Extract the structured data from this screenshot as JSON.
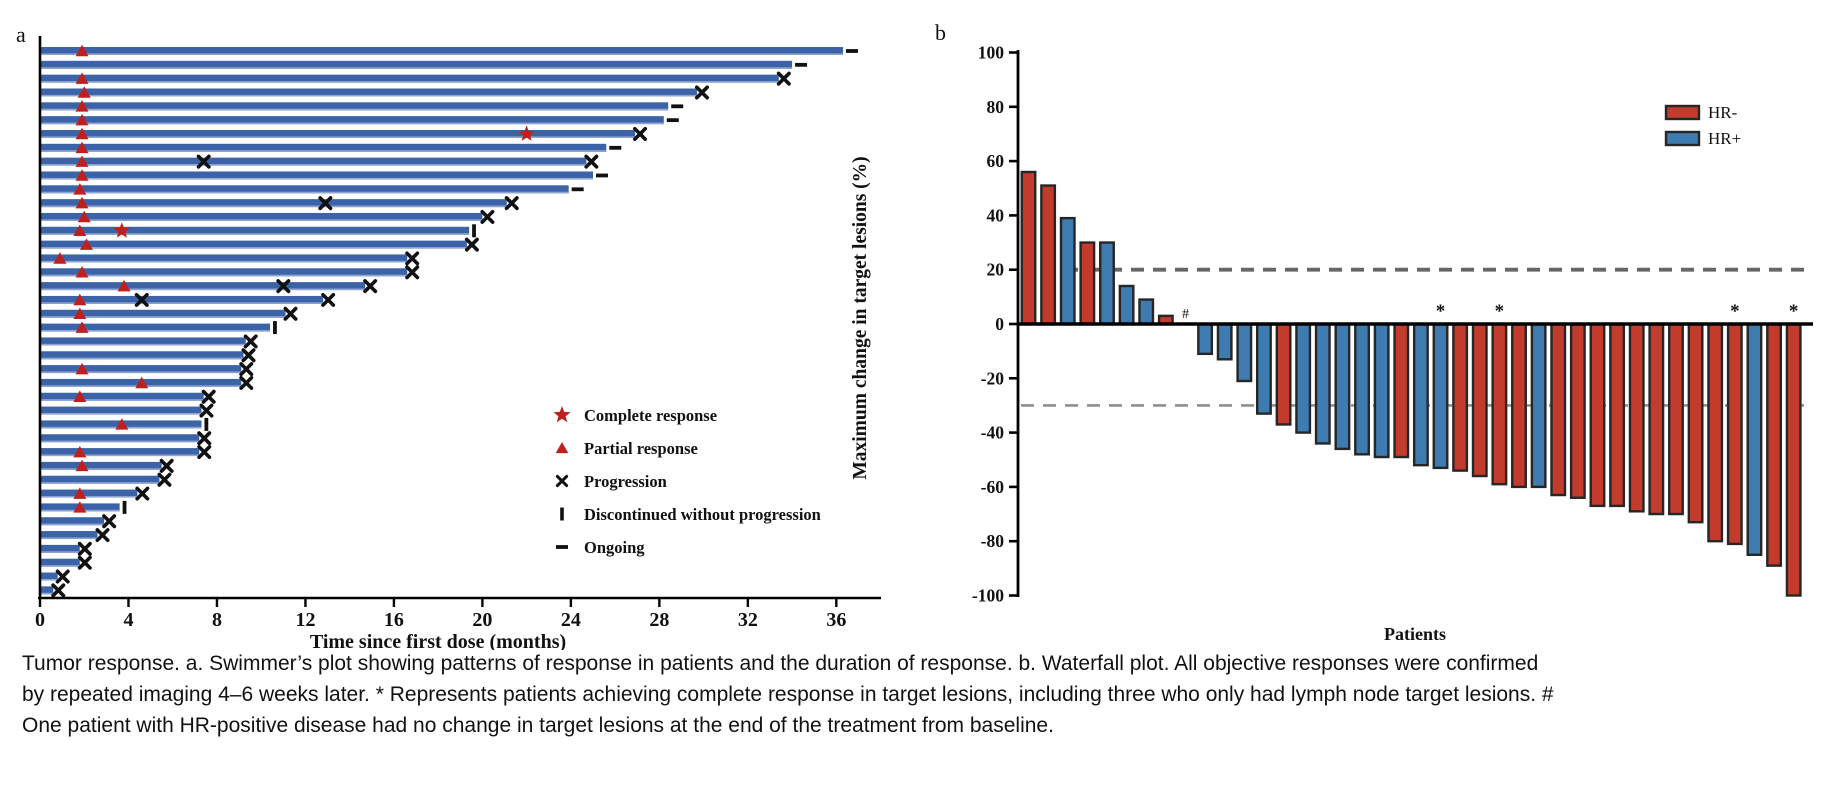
{
  "colors": {
    "swimmer_bar": "#3c63a8",
    "swimmer_bar_edge": "#8ea6cf",
    "hr_neg_red": "#c23b2c",
    "hr_pos_blue": "#3e7bb0",
    "bar_outline": "#262626",
    "response_marker_red": "#c01f1f",
    "progression_black": "#111111",
    "dash_line_dark": "#666666",
    "dash_line_light": "#8f8f8f"
  },
  "caption": {
    "text": "Tumor response. a. Swimmer’s plot showing patterns of response in patients and the duration of response. b. Waterfall plot. All objective responses were confirmed by repeated imaging 4–6 weeks later. * Represents patients achieving complete response in target lesions, including three who only had lymph node target lesions. # One patient with HR-positive disease had no change in target lesions at the end of the treatment from baseline."
  },
  "chart_data": [
    {
      "type": "bar",
      "id": "swimmer",
      "panel_label": "a",
      "orientation": "horizontal",
      "xlabel": "Time since first dose (months)",
      "x_ticks": [
        0,
        4,
        8,
        12,
        16,
        20,
        24,
        28,
        32,
        36
      ],
      "xlim": [
        0,
        38
      ],
      "grid": false,
      "legend_position": "right-middle",
      "legend": [
        {
          "symbol": "star",
          "label": "Complete response"
        },
        {
          "symbol": "triangle",
          "label": "Partial response"
        },
        {
          "symbol": "x",
          "label": "Progression"
        },
        {
          "symbol": "bar",
          "label": "Discontinued without progression"
        },
        {
          "symbol": "dash",
          "label": "Ongoing"
        }
      ],
      "bars_unit": "months on treatment",
      "bars": [
        {
          "months": 36.3,
          "end": "ongoing",
          "pr": 1.9
        },
        {
          "months": 34.0,
          "end": "ongoing"
        },
        {
          "months": 33.4,
          "end": "x",
          "pr": 1.9
        },
        {
          "months": 29.7,
          "end": "x",
          "pr": 2.0
        },
        {
          "months": 28.4,
          "end": "ongoing",
          "pr": 1.9
        },
        {
          "months": 28.2,
          "end": "ongoing",
          "pr": 1.9
        },
        {
          "months": 26.9,
          "end": "x",
          "pr": 1.9,
          "cr": 22.0
        },
        {
          "months": 25.6,
          "end": "ongoing",
          "pr": 1.9
        },
        {
          "months": 24.7,
          "end": "x",
          "pr": 1.9,
          "xmid": [
            7.4
          ]
        },
        {
          "months": 25.0,
          "end": "ongoing",
          "pr": 1.9
        },
        {
          "months": 23.9,
          "end": "ongoing",
          "pr": 1.8
        },
        {
          "months": 21.1,
          "end": "x",
          "pr": 1.9,
          "xmid": [
            12.9
          ]
        },
        {
          "months": 20.0,
          "end": "x",
          "pr": 2.0
        },
        {
          "months": 19.4,
          "end": "disc",
          "pr": 1.8,
          "cr": 3.7
        },
        {
          "months": 19.3,
          "end": "x",
          "pr": 2.1
        },
        {
          "months": 16.6,
          "end": "x",
          "pr": 0.9
        },
        {
          "months": 16.6,
          "end": "x",
          "pr": 1.9
        },
        {
          "months": 14.7,
          "end": "x",
          "pr": 3.8,
          "xmid": [
            11.0
          ]
        },
        {
          "months": 12.8,
          "end": "x",
          "pr": 1.8,
          "xmid": [
            4.6
          ]
        },
        {
          "months": 11.1,
          "end": "x",
          "pr": 1.8
        },
        {
          "months": 10.4,
          "end": "disc",
          "pr": 1.9
        },
        {
          "months": 9.3,
          "end": "x"
        },
        {
          "months": 9.2,
          "end": "x"
        },
        {
          "months": 9.1,
          "end": "x",
          "pr": 1.9
        },
        {
          "months": 9.1,
          "end": "x",
          "pr": 4.6
        },
        {
          "months": 7.4,
          "end": "x",
          "pr": 1.8
        },
        {
          "months": 7.3,
          "end": "x"
        },
        {
          "months": 7.3,
          "end": "disc",
          "pr": 3.7
        },
        {
          "months": 7.2,
          "end": "x"
        },
        {
          "months": 7.2,
          "end": "x",
          "pr": 1.8
        },
        {
          "months": 5.5,
          "end": "x",
          "pr": 1.9
        },
        {
          "months": 5.4,
          "end": "x"
        },
        {
          "months": 4.4,
          "end": "x",
          "pr": 1.8
        },
        {
          "months": 3.6,
          "end": "disc",
          "pr": 1.8
        },
        {
          "months": 2.9,
          "end": "x"
        },
        {
          "months": 2.6,
          "end": "x"
        },
        {
          "months": 1.8,
          "end": "x"
        },
        {
          "months": 1.8,
          "end": "x"
        },
        {
          "months": 0.8,
          "end": "x"
        },
        {
          "months": 0.6,
          "end": "x"
        }
      ]
    },
    {
      "type": "bar",
      "id": "waterfall",
      "panel_label": "b",
      "orientation": "vertical",
      "ylabel": "Maximum change in target lesions (%)",
      "xlabel": "Patients",
      "ylim": [
        -100,
        100
      ],
      "y_ticks": [
        100,
        80,
        60,
        40,
        20,
        0,
        -20,
        -40,
        -60,
        -80,
        -100
      ],
      "reference_lines": [
        20,
        -30
      ],
      "grid": false,
      "legend_position": "top-right",
      "legend": [
        {
          "label": "HR-",
          "group": "HR-"
        },
        {
          "label": "HR+",
          "group": "HR+"
        }
      ],
      "patients": [
        {
          "value": 56,
          "group": "HR-"
        },
        {
          "value": 51,
          "group": "HR-"
        },
        {
          "value": 39,
          "group": "HR+"
        },
        {
          "value": 30,
          "group": "HR-"
        },
        {
          "value": 30,
          "group": "HR+"
        },
        {
          "value": 14,
          "group": "HR+"
        },
        {
          "value": 9,
          "group": "HR+"
        },
        {
          "value": 3,
          "group": "HR-"
        },
        {
          "value": 0,
          "group": "HR+",
          "marker": "#"
        },
        {
          "value": -11,
          "group": "HR+"
        },
        {
          "value": -13,
          "group": "HR+"
        },
        {
          "value": -21,
          "group": "HR+"
        },
        {
          "value": -33,
          "group": "HR+"
        },
        {
          "value": -37,
          "group": "HR-"
        },
        {
          "value": -40,
          "group": "HR+"
        },
        {
          "value": -44,
          "group": "HR+"
        },
        {
          "value": -46,
          "group": "HR+"
        },
        {
          "value": -48,
          "group": "HR+"
        },
        {
          "value": -49,
          "group": "HR+"
        },
        {
          "value": -49,
          "group": "HR-"
        },
        {
          "value": -52,
          "group": "HR+"
        },
        {
          "value": -53,
          "group": "HR+",
          "marker": "*"
        },
        {
          "value": -54,
          "group": "HR-"
        },
        {
          "value": -56,
          "group": "HR-"
        },
        {
          "value": -59,
          "group": "HR-",
          "marker": "*"
        },
        {
          "value": -60,
          "group": "HR-"
        },
        {
          "value": -60,
          "group": "HR+"
        },
        {
          "value": -63,
          "group": "HR-"
        },
        {
          "value": -64,
          "group": "HR-"
        },
        {
          "value": -67,
          "group": "HR-"
        },
        {
          "value": -67,
          "group": "HR-"
        },
        {
          "value": -69,
          "group": "HR-"
        },
        {
          "value": -70,
          "group": "HR-"
        },
        {
          "value": -70,
          "group": "HR-"
        },
        {
          "value": -73,
          "group": "HR-"
        },
        {
          "value": -80,
          "group": "HR-"
        },
        {
          "value": -81,
          "group": "HR-",
          "marker": "*"
        },
        {
          "value": -85,
          "group": "HR+"
        },
        {
          "value": -89,
          "group": "HR-"
        },
        {
          "value": -100,
          "group": "HR-",
          "marker": "*"
        }
      ]
    }
  ]
}
